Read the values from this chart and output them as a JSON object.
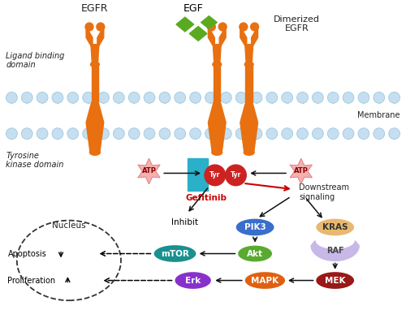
{
  "bg_color": "#ffffff",
  "membrane_color": "#c5dff0",
  "membrane_line_color": "#a0c8e0",
  "receptor_color": "#e87010",
  "egf_color": "#5aaa20",
  "atp_color": "#f5b0b0",
  "atp_border_color": "#e08080",
  "gefitinib_color": "#2ab0c8",
  "tyr_color": "#cc2222",
  "pik3_color": "#3a6ecc",
  "akt_color": "#5aaa30",
  "mtor_color": "#1a9090",
  "erk_color": "#8830cc",
  "mapk_color": "#e06010",
  "mek_color": "#991818",
  "kras_color": "#e8b870",
  "raf_color": "#c8b8e8",
  "arrow_color": "#111111",
  "red_arrow_color": "#cc0000",
  "text_color": "#222222",
  "gefitinib_text_color": "#cc0000",
  "labels": {
    "egfr": "EGFR",
    "egf": "EGF",
    "dimerized": "Dimerized\nEGFR",
    "membrane": "Membrane",
    "ligand_binding": "Ligand binding\ndomain",
    "tyrosine_kinase": "Tyrosine\nkinase domain",
    "atp": "ATP",
    "gefitinib": "Gefitinib",
    "tyr": "Tyr",
    "inhibit": "Inhibit",
    "downstream": "Downstream\nsignaling",
    "pik3": "PIK3",
    "akt": "Akt",
    "mtor": "mTOR",
    "erk": "Erk",
    "mapk": "MAPK",
    "mek": "MEK",
    "kras": "KRAS",
    "raf": "RAF",
    "nucleus": "Nucleus",
    "apoptosis": "Apoptosis",
    "proliferation": "Proliferation"
  }
}
